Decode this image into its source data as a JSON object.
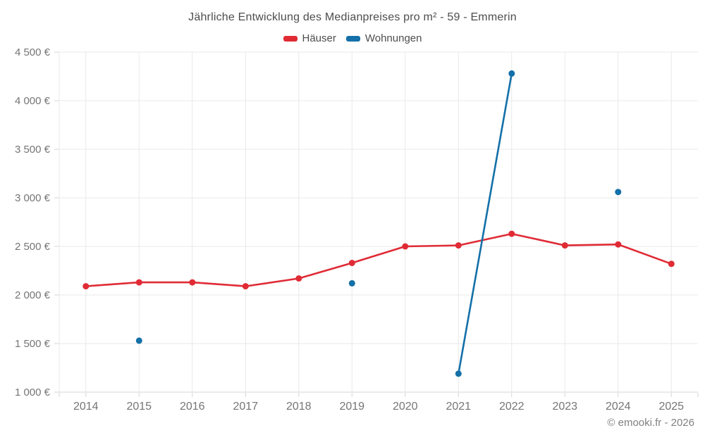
{
  "credit": "© emooki.fr - 2026",
  "colors": {
    "hauser": "#e02b35",
    "wohnungen": "#1470a8",
    "grid": "#e9e9e9",
    "axis": "#d6d6d6",
    "tick_label": "#757575",
    "title_text": "#4d4d4d",
    "credit_text": "#808080"
  },
  "chart_data": {
    "type": "line",
    "title": "Jährliche Entwicklung des Medianpreises pro m² - 59 - Emmerin",
    "categories": [
      "2014",
      "2015",
      "2016",
      "2017",
      "2018",
      "2019",
      "2020",
      "2021",
      "2022",
      "2023",
      "2024",
      "2025"
    ],
    "series": [
      {
        "name": "Häuser",
        "color": "#e02b35",
        "values": [
          2090,
          2130,
          2130,
          2090,
          2170,
          2330,
          2500,
          2510,
          2630,
          2510,
          2520,
          2320
        ]
      },
      {
        "name": "Wohnungen",
        "color": "#1470a8",
        "values": [
          null,
          1530,
          null,
          null,
          null,
          2120,
          null,
          1190,
          4280,
          null,
          3060,
          null
        ]
      }
    ],
    "xlabel": "",
    "ylabel": "",
    "ylim": [
      1000,
      4500
    ],
    "ytick_step": 500,
    "ytick_labels": [
      "1 000 €",
      "1 500 €",
      "2 000 €",
      "2 500 €",
      "3 000 €",
      "3 500 €",
      "4 000 €",
      "4 500 €"
    ],
    "grid": true,
    "legend_position": "top-center",
    "marker": "circle"
  }
}
